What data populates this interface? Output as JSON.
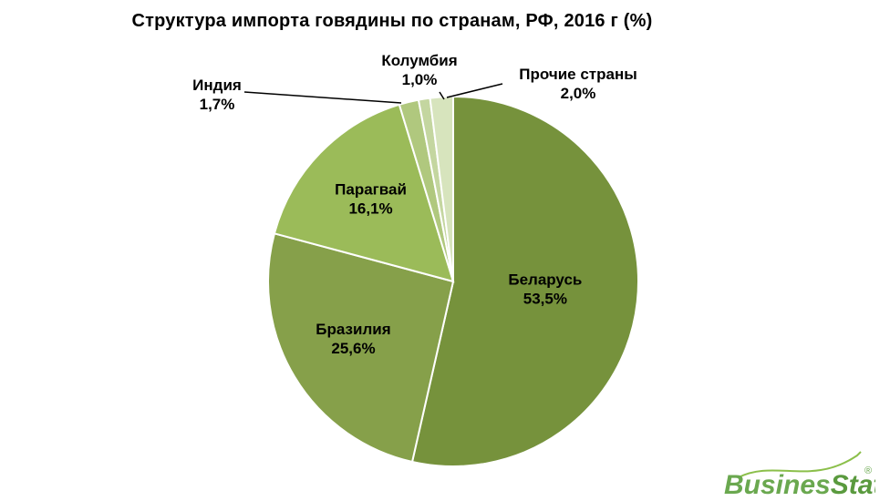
{
  "chart_data": {
    "type": "pie",
    "title": "Структура импорта говядины  по странам, РФ, 2016 г (%)",
    "categories": [
      "Беларусь",
      "Бразилия",
      "Парагвай",
      "Индия",
      "Колумбия",
      "Прочие страны"
    ],
    "values": [
      53.5,
      25.6,
      16.1,
      1.7,
      1.0,
      2.0
    ],
    "value_labels": [
      "53,5%",
      "25,6%",
      "16,1%",
      "1,7%",
      "1,0%",
      "2,0%"
    ],
    "colors": [
      "#76923c",
      "#86a04a",
      "#9bbb59",
      "#b0c87e",
      "#c4d6a0",
      "#d7e4bd"
    ],
    "legend": "none",
    "start_angle_deg": 0,
    "direction": "clockwise"
  },
  "logo": {
    "text_part1": "Busines",
    "text_part2": "Stat",
    "registered": "®",
    "color": "#6aa84f"
  }
}
